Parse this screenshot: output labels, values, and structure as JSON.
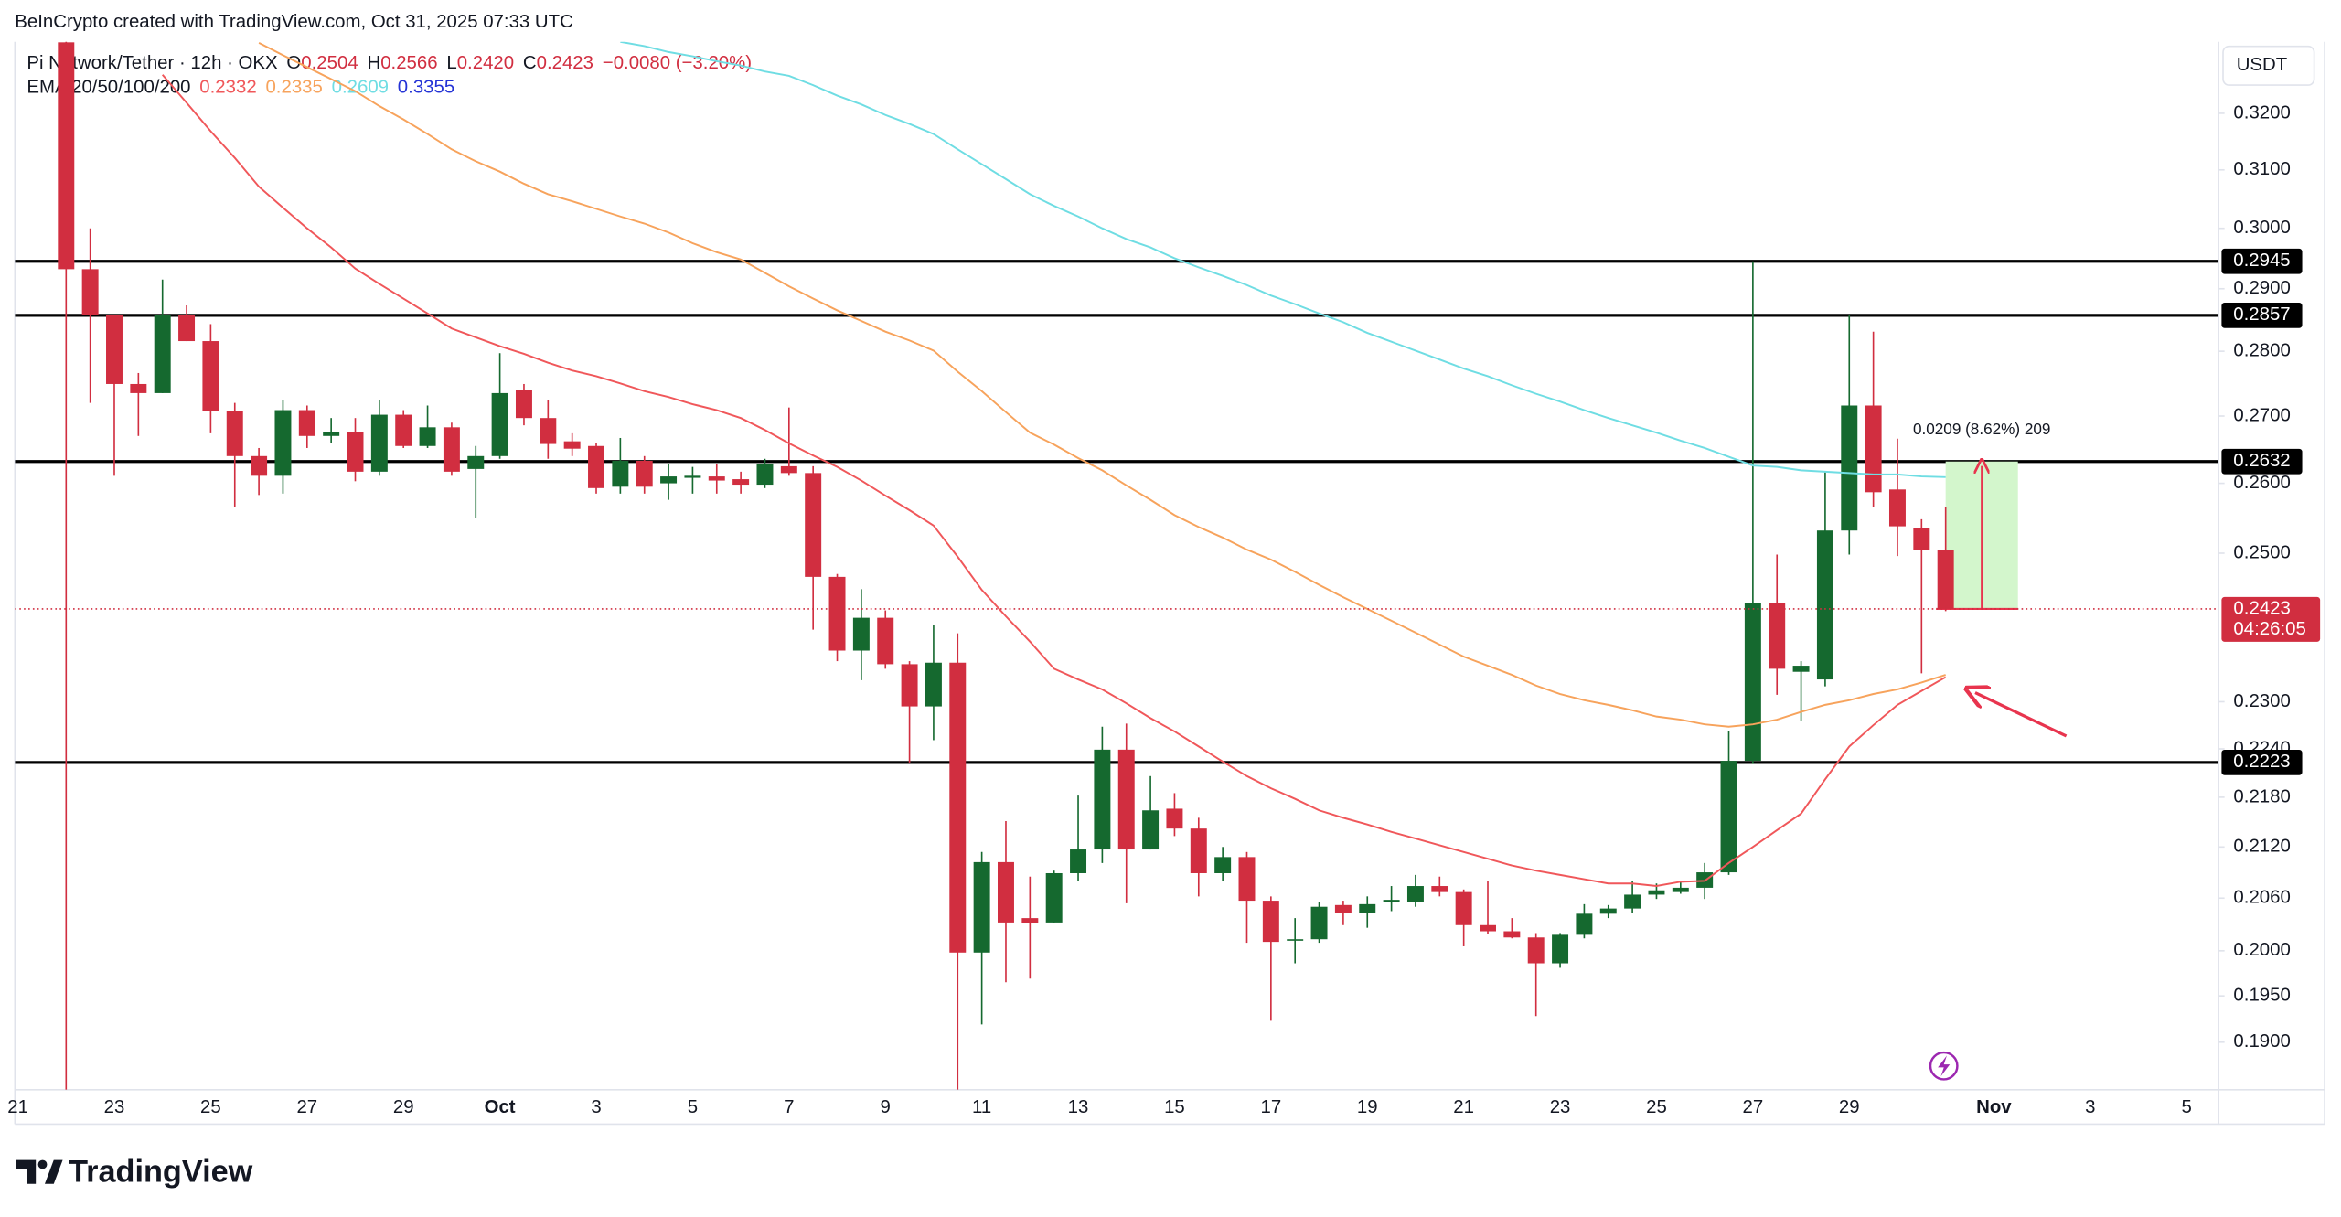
{
  "header": {
    "attribution": "BeInCrypto created with TradingView.com, Oct 31, 2025 07:33 UTC"
  },
  "chart_data": {
    "type": "candlestick",
    "title": "Pi Network/Tether · 12h · OKX",
    "ohlc_legend": [
      {
        "label": "O",
        "text": "0.2504"
      },
      {
        "label": "H",
        "text": "0.2566"
      },
      {
        "label": "L",
        "text": "0.2420"
      },
      {
        "label": "C",
        "text": "0.2423"
      }
    ],
    "change": "−0.0080 (−3.20%)",
    "indicator_label": "EMA 20/50/100/200",
    "ema": [
      {
        "color": "#f0575a",
        "last": "0.2332",
        "values": [
          null,
          null,
          null,
          null,
          null,
          null,
          0.327,
          0.3219,
          0.3168,
          0.3121,
          0.3071,
          0.3035,
          0.3,
          0.2968,
          0.2933,
          0.2908,
          0.2884,
          0.286,
          0.2836,
          0.2822,
          0.2808,
          0.2796,
          0.2782,
          0.277,
          0.2761,
          0.275,
          0.2738,
          0.2729,
          0.2718,
          0.2709,
          0.2697,
          0.2679,
          0.2659,
          0.2641,
          0.2624,
          0.2604,
          0.2582,
          0.2561,
          0.2539,
          0.2495,
          0.2449,
          0.2413,
          0.2379,
          0.2343,
          0.2329,
          0.2316,
          0.2298,
          0.2279,
          0.2262,
          0.2243,
          0.2224,
          0.2206,
          0.2191,
          0.2178,
          0.2164,
          0.2155,
          0.2147,
          0.2138,
          0.213,
          0.2122,
          0.2114,
          0.2106,
          0.2098,
          0.2092,
          0.2087,
          0.2082,
          0.2077,
          0.2077,
          0.2074,
          0.2079,
          0.208,
          0.2101,
          0.212,
          0.214,
          0.216,
          0.2202,
          0.2243,
          0.227,
          0.2296,
          0.2314,
          0.2332,
          null,
          null,
          null,
          null,
          null,
          null,
          null,
          null,
          null,
          null,
          null
        ]
      },
      {
        "color": "#f7a35c",
        "last": "0.2335",
        "values": [
          null,
          null,
          null,
          null,
          null,
          null,
          null,
          null,
          null,
          null,
          0.3329,
          0.3306,
          0.3284,
          0.3262,
          0.324,
          0.3213,
          0.3189,
          0.3163,
          0.3136,
          0.3115,
          0.3097,
          0.3076,
          0.3058,
          0.3046,
          0.3033,
          0.302,
          0.3008,
          0.2993,
          0.2975,
          0.296,
          0.2948,
          0.2926,
          0.2904,
          0.2884,
          0.2865,
          0.2848,
          0.2831,
          0.2817,
          0.2801,
          0.2768,
          0.2738,
          0.2706,
          0.2675,
          0.2657,
          0.2637,
          0.2619,
          0.2597,
          0.2576,
          0.2554,
          0.2537,
          0.2522,
          0.2505,
          0.2491,
          0.2474,
          0.2456,
          0.2439,
          0.2423,
          0.2407,
          0.2391,
          0.2375,
          0.2359,
          0.2347,
          0.2335,
          0.2321,
          0.231,
          0.2302,
          0.2296,
          0.2289,
          0.2281,
          0.2277,
          0.2271,
          0.2268,
          0.2271,
          0.2277,
          0.2287,
          0.2296,
          0.2302,
          0.231,
          0.2316,
          0.2325,
          0.2335,
          null,
          null,
          null,
          null,
          null,
          null,
          null,
          null,
          null,
          null,
          null
        ]
      },
      {
        "color": "#6fdde3",
        "last": "0.2609",
        "values": [
          null,
          null,
          null,
          null,
          null,
          null,
          null,
          null,
          null,
          null,
          null,
          null,
          null,
          null,
          null,
          null,
          null,
          null,
          null,
          null,
          null,
          null,
          null,
          null,
          null,
          0.3331,
          0.3323,
          0.3312,
          0.3304,
          0.3295,
          0.3287,
          0.3276,
          0.3268,
          0.3251,
          0.3232,
          0.3216,
          0.3197,
          0.3181,
          0.3163,
          0.3136,
          0.311,
          0.3084,
          0.3058,
          0.3038,
          0.302,
          0.3,
          0.2982,
          0.2968,
          0.295,
          0.2935,
          0.2921,
          0.2906,
          0.2889,
          0.2875,
          0.286,
          0.2846,
          0.2829,
          0.2815,
          0.2801,
          0.2787,
          0.2773,
          0.2761,
          0.2747,
          0.2734,
          0.2722,
          0.2709,
          0.2697,
          0.2686,
          0.2675,
          0.2663,
          0.2652,
          0.2639,
          0.2626,
          0.2624,
          0.2619,
          0.2617,
          0.2615,
          0.2613,
          0.2613,
          0.261,
          0.2609,
          null,
          null,
          null,
          null,
          null,
          null,
          null,
          null,
          null,
          null,
          null
        ]
      },
      {
        "color": "#2433d6",
        "last": "0.3355"
      }
    ],
    "currency": "USDT",
    "categories": [
      "21",
      null,
      null,
      null,
      "23",
      null,
      null,
      null,
      "25",
      null,
      null,
      null,
      "27",
      null,
      null,
      null,
      "29",
      null,
      null,
      null,
      "Oct",
      null,
      null,
      null,
      "3",
      null,
      null,
      null,
      "5",
      null,
      null,
      null,
      "7",
      null,
      null,
      null,
      "9",
      null,
      null,
      null,
      "11",
      null,
      null,
      null,
      "13",
      null,
      null,
      null,
      "15",
      null,
      null,
      null,
      "17",
      null,
      null,
      null,
      "19",
      null,
      null,
      null,
      "21",
      null,
      null,
      null,
      "23",
      null,
      null,
      null,
      "25",
      null,
      null,
      null,
      "27",
      null,
      null,
      null,
      "29",
      null,
      null,
      null,
      null,
      null,
      "Nov",
      null,
      null,
      null,
      "3",
      null,
      null,
      null,
      "5",
      null
    ],
    "open": [
      null,
      null,
      0.333,
      0.2932,
      0.2858,
      0.2749,
      0.2735,
      0.2858,
      0.2816,
      0.2707,
      0.264,
      0.2611,
      0.2709,
      0.267,
      0.2676,
      0.2617,
      0.2702,
      0.2655,
      0.2683,
      0.2621,
      0.264,
      0.274,
      0.2697,
      0.2662,
      0.2655,
      0.2595,
      0.2633,
      0.26,
      0.2608,
      0.261,
      0.2606,
      0.2598,
      0.2625,
      0.2615,
      0.2467,
      0.2367,
      0.2411,
      0.2349,
      0.2294,
      0.2351,
      0.1998,
      0.2102,
      0.2037,
      0.2032,
      0.2089,
      0.2117,
      0.2239,
      0.2117,
      0.2166,
      0.2142,
      0.2089,
      0.2108,
      0.2057,
      0.2012,
      0.2013,
      0.2052,
      0.2043,
      0.2055,
      0.2055,
      0.2074,
      0.2067,
      0.2029,
      0.2022,
      0.2015,
      0.1986,
      0.2018,
      0.2042,
      0.2048,
      0.2064,
      0.2067,
      0.2072,
      0.209,
      0.2225,
      0.2431,
      0.2339,
      0.2329,
      0.2532,
      0.2716,
      0.2591,
      0.2536,
      0.2504,
      null,
      null,
      null,
      null,
      null,
      null,
      null,
      null,
      null,
      null,
      null
    ],
    "high": [
      null,
      null,
      0.336,
      0.3,
      0.2858,
      0.2766,
      0.2915,
      0.2873,
      0.2843,
      0.272,
      0.2652,
      0.2725,
      0.2716,
      0.2697,
      0.2697,
      0.2725,
      0.2709,
      0.2716,
      0.269,
      0.2655,
      0.2797,
      0.2749,
      0.2725,
      0.2674,
      0.2659,
      0.2667,
      0.264,
      0.2629,
      0.2624,
      0.2629,
      0.2617,
      0.2636,
      0.2713,
      0.2625,
      0.2471,
      0.245,
      0.2421,
      0.2353,
      0.2401,
      0.239,
      0.2114,
      0.2151,
      0.2085,
      0.2092,
      0.2182,
      0.2268,
      0.2272,
      0.2206,
      0.2185,
      0.2155,
      0.212,
      0.2114,
      0.2062,
      0.2037,
      0.2055,
      0.2057,
      0.2062,
      0.2074,
      0.2087,
      0.2085,
      0.207,
      0.208,
      0.2037,
      0.202,
      0.202,
      0.2053,
      0.2052,
      0.208,
      0.2077,
      0.208,
      0.2101,
      0.2262,
      0.2945,
      0.2498,
      0.2353,
      0.2616,
      0.2858,
      0.2831,
      0.2666,
      0.2548,
      0.2566,
      null,
      null,
      null,
      null,
      null,
      null,
      null,
      null,
      null,
      null,
      null
    ],
    "low": [
      null,
      null,
      0.185,
      0.272,
      0.2611,
      0.267,
      0.2735,
      0.2816,
      0.2674,
      0.2565,
      0.2583,
      0.2585,
      0.2652,
      0.2659,
      0.2603,
      0.2611,
      0.2652,
      0.2652,
      0.2611,
      0.255,
      0.2636,
      0.2686,
      0.2636,
      0.264,
      0.2585,
      0.2585,
      0.2585,
      0.2576,
      0.2585,
      0.2585,
      0.2585,
      0.2593,
      0.2611,
      0.2395,
      0.2353,
      0.2328,
      0.2343,
      0.2222,
      0.2251,
      0.185,
      0.1919,
      0.1965,
      0.1969,
      0.2032,
      0.208,
      0.2101,
      0.2054,
      0.2117,
      0.2133,
      0.2062,
      0.208,
      0.2009,
      0.1923,
      0.1986,
      0.2009,
      0.2029,
      0.2026,
      0.2045,
      0.205,
      0.2062,
      0.2005,
      0.2019,
      0.2014,
      0.1928,
      0.1981,
      0.2014,
      0.2037,
      0.2043,
      0.2059,
      0.2065,
      0.2059,
      0.2087,
      0.2221,
      0.2309,
      0.2275,
      0.232,
      0.2498,
      0.2565,
      0.2496,
      0.2337,
      0.242,
      null,
      null,
      null,
      null,
      null,
      null,
      null,
      null,
      null,
      null,
      null
    ],
    "close": [
      null,
      null,
      0.2932,
      0.2858,
      0.2749,
      0.2735,
      0.2858,
      0.2816,
      0.2707,
      0.264,
      0.2611,
      0.2709,
      0.267,
      0.2676,
      0.2617,
      0.2702,
      0.2655,
      0.2683,
      0.2617,
      0.264,
      0.2735,
      0.2697,
      0.2658,
      0.2651,
      0.2593,
      0.2633,
      0.2595,
      0.261,
      0.2611,
      0.2604,
      0.2598,
      0.2629,
      0.2615,
      0.2467,
      0.2367,
      0.2411,
      0.2349,
      0.2294,
      0.2351,
      0.1998,
      0.2102,
      0.2032,
      0.2031,
      0.2089,
      0.2117,
      0.2239,
      0.2117,
      0.2164,
      0.2142,
      0.2089,
      0.2108,
      0.2057,
      0.201,
      0.2013,
      0.205,
      0.2043,
      0.2053,
      0.2058,
      0.2074,
      0.2067,
      0.2029,
      0.2022,
      0.2015,
      0.1986,
      0.2018,
      0.2042,
      0.2048,
      0.2064,
      0.2069,
      0.2072,
      0.209,
      0.2225,
      0.2431,
      0.2343,
      0.2347,
      0.2532,
      0.2716,
      0.2587,
      0.2538,
      0.2504,
      0.2423,
      null,
      null,
      null,
      null,
      null,
      null,
      null,
      null,
      null,
      null,
      null
    ],
    "up_color": "#15692f",
    "down_color": "#d12e40",
    "ylim": [
      0.1853,
      0.3331
    ],
    "log_scale": true,
    "grid": false,
    "yticks": [
      {
        "value": 0.32,
        "label": "0.3200"
      },
      {
        "value": 0.31,
        "label": "0.3100"
      },
      {
        "value": 0.3,
        "label": "0.3000"
      },
      {
        "value": 0.29,
        "label": "0.2900"
      },
      {
        "value": 0.28,
        "label": "0.2800"
      },
      {
        "value": 0.27,
        "label": "0.2700"
      },
      {
        "value": 0.26,
        "label": "0.2600"
      },
      {
        "value": 0.25,
        "label": "0.2500"
      },
      {
        "value": 0.23,
        "label": "0.2300"
      },
      {
        "value": 0.224,
        "label": "0.2240"
      },
      {
        "value": 0.218,
        "label": "0.2180"
      },
      {
        "value": 0.212,
        "label": "0.2120"
      },
      {
        "value": 0.206,
        "label": "0.2060"
      },
      {
        "value": 0.2,
        "label": "0.2000"
      },
      {
        "value": 0.195,
        "label": "0.1950"
      },
      {
        "value": 0.19,
        "label": "0.1900"
      }
    ],
    "levels": [
      {
        "value": 0.2945
      },
      {
        "value": 0.2857
      },
      {
        "value": 0.2632
      },
      {
        "value": 0.2223
      }
    ],
    "level_color": "#000000",
    "last_price": {
      "value": 0.2423,
      "countdown": "04:26:05",
      "color": "#d12e40"
    },
    "measure": {
      "from": 0.2423,
      "to": 0.2632,
      "text": "0.0209 (8.62%) 209",
      "color": "#d3f6cc",
      "line_color": "#e8344e"
    }
  },
  "footer": {
    "logo": "TradingView"
  }
}
